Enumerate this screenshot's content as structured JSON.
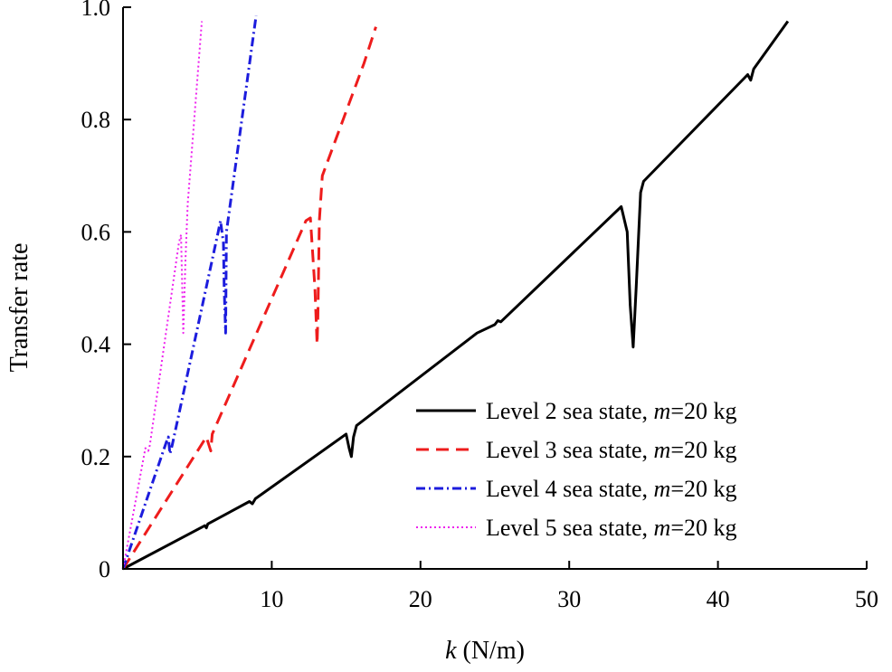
{
  "chart_data": {
    "type": "line",
    "title": "",
    "xlabel": {
      "italic": "k",
      "rest": " (N/m)"
    },
    "ylabel": "Transfer rate",
    "xlim": [
      0,
      50
    ],
    "ylim": [
      0,
      1.0
    ],
    "xticks": [
      10,
      20,
      30,
      40,
      50
    ],
    "xtick_labels": [
      "10",
      "20",
      "30",
      "40",
      "50"
    ],
    "yticks": [
      0,
      0.2,
      0.4,
      0.6,
      0.8,
      1.0
    ],
    "ytick_labels": [
      "0",
      "0.2",
      "0.4",
      "0.6",
      "0.8",
      "1.0"
    ],
    "grid": false,
    "legend_position": "lower-right",
    "series": [
      {
        "name": "Level 2 sea state, m=20 kg",
        "legend": {
          "pre": "Level 2 sea state, ",
          "italic": "m",
          "post": "=20 kg"
        },
        "color": "#000000",
        "dash": "solid",
        "x": [
          0,
          5.5,
          5.6,
          5.7,
          8.5,
          8.7,
          8.9,
          15.0,
          15.2,
          15.35,
          15.5,
          15.7,
          23.8,
          25.0,
          25.2,
          25.4,
          33.5,
          33.9,
          34.1,
          34.3,
          34.5,
          34.8,
          35.0,
          42.0,
          42.2,
          42.4,
          44.7
        ],
        "y": [
          0,
          0.077,
          0.073,
          0.08,
          0.12,
          0.116,
          0.125,
          0.24,
          0.215,
          0.2,
          0.235,
          0.255,
          0.42,
          0.435,
          0.442,
          0.44,
          0.645,
          0.6,
          0.47,
          0.395,
          0.5,
          0.67,
          0.69,
          0.88,
          0.87,
          0.89,
          0.975
        ]
      },
      {
        "name": "Level 3 sea state, m=20 kg",
        "legend": {
          "pre": "Level 3 sea state, ",
          "italic": "m",
          "post": "=20 kg"
        },
        "color": "#ee1c1c",
        "dash": "dashed",
        "x": [
          0,
          5.6,
          5.9,
          6.0,
          12.3,
          12.6,
          12.9,
          13.05,
          13.1,
          13.2,
          13.4,
          16.2,
          17.0
        ],
        "y": [
          0,
          0.235,
          0.21,
          0.24,
          0.62,
          0.625,
          0.5,
          0.4,
          0.45,
          0.62,
          0.7,
          0.9,
          0.965
        ]
      },
      {
        "name": "Level 4 sea state, m=20 kg",
        "legend": {
          "pre": "Level 4 sea state, ",
          "italic": "m",
          "post": "=20 kg"
        },
        "color": "#1c1cdd",
        "dash": "dashdot",
        "x": [
          0,
          2.9,
          3.05,
          3.15,
          3.3,
          6.4,
          6.55,
          6.75,
          6.8,
          6.9,
          6.95,
          8.95
        ],
        "y": [
          0,
          0.225,
          0.235,
          0.205,
          0.22,
          0.6,
          0.62,
          0.58,
          0.5,
          0.42,
          0.6,
          0.985
        ]
      },
      {
        "name": "Level 5 sea state, m=20 kg",
        "legend": {
          "pre": "Level 5 sea state, ",
          "italic": "m",
          "post": "=20 kg"
        },
        "color": "#ee22ee",
        "dash": "dotted",
        "x": [
          0,
          1.5,
          1.7,
          1.8,
          3.75,
          3.9,
          4.05,
          4.2,
          4.35,
          5.3
        ],
        "y": [
          0,
          0.215,
          0.21,
          0.22,
          0.58,
          0.595,
          0.42,
          0.55,
          0.65,
          0.975
        ]
      }
    ]
  }
}
